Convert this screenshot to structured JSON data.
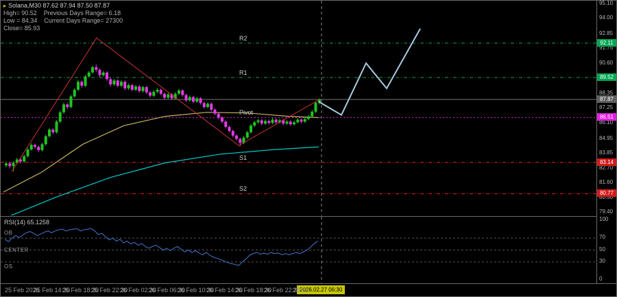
{
  "legend": {
    "marker": "▸",
    "title": "Solana,M30 87.62 87.94 87.50 87.87",
    "info_lines": [
      "High= 90.52    Previous Days Range= 6.18",
      "Low = 84.34    Current Days Range= 27300",
      "Close= 85.93"
    ]
  },
  "chart_data": {
    "type": "candlestick",
    "symbol": "Solana",
    "timeframe": "M30",
    "current_bar": {
      "open": 87.62,
      "high": 87.94,
      "low": 87.5,
      "close": 87.87
    },
    "ylim": [
      79.4,
      95.1
    ],
    "bull_color": "#1fc41f",
    "bear_color": "#e33ae3",
    "candles": [
      [
        82.9,
        83.2,
        82.75,
        83.05
      ],
      [
        83.05,
        83.15,
        82.7,
        82.85
      ],
      [
        82.85,
        83.22,
        82.45,
        83.1
      ],
      [
        83.1,
        83.48,
        83.0,
        83.35
      ],
      [
        83.35,
        83.45,
        83.05,
        83.2
      ],
      [
        83.2,
        83.72,
        83.1,
        83.6
      ],
      [
        83.6,
        84.22,
        83.5,
        84.1
      ],
      [
        84.1,
        84.58,
        84.0,
        84.45
      ],
      [
        84.45,
        84.55,
        84.15,
        84.3
      ],
      [
        84.3,
        84.4,
        83.92,
        84.05
      ],
      [
        84.05,
        84.62,
        83.95,
        84.5
      ],
      [
        84.5,
        85.22,
        84.4,
        85.1
      ],
      [
        85.1,
        85.72,
        85.0,
        85.6
      ],
      [
        85.6,
        85.7,
        85.25,
        85.4
      ],
      [
        85.4,
        86.32,
        85.3,
        86.2
      ],
      [
        86.2,
        87.02,
        86.1,
        86.9
      ],
      [
        86.9,
        87.62,
        86.8,
        87.5
      ],
      [
        87.5,
        87.6,
        87.15,
        87.3
      ],
      [
        87.3,
        88.22,
        87.2,
        88.1
      ],
      [
        88.1,
        88.72,
        88.0,
        88.6
      ],
      [
        88.6,
        89.32,
        88.5,
        89.2
      ],
      [
        89.2,
        89.3,
        88.75,
        88.9
      ],
      [
        88.9,
        89.72,
        88.8,
        89.6
      ],
      [
        89.6,
        90.02,
        89.5,
        89.9
      ],
      [
        89.9,
        90.42,
        89.8,
        90.3
      ],
      [
        90.3,
        90.52,
        89.95,
        90.1
      ],
      [
        90.1,
        90.2,
        89.55,
        89.7
      ],
      [
        89.7,
        90.02,
        89.6,
        89.9
      ],
      [
        89.9,
        90.0,
        89.28,
        89.4
      ],
      [
        89.4,
        89.5,
        88.85,
        89.0
      ],
      [
        89.0,
        89.42,
        88.9,
        89.3
      ],
      [
        89.3,
        89.4,
        88.78,
        88.9
      ],
      [
        88.9,
        89.32,
        88.8,
        89.2
      ],
      [
        89.2,
        89.3,
        88.58,
        88.7
      ],
      [
        88.7,
        89.07,
        88.6,
        88.95
      ],
      [
        88.95,
        89.05,
        88.48,
        88.6
      ],
      [
        88.6,
        88.97,
        88.5,
        88.85
      ],
      [
        88.85,
        88.95,
        88.38,
        88.5
      ],
      [
        88.5,
        88.92,
        88.4,
        88.8
      ],
      [
        88.8,
        88.9,
        88.28,
        88.4
      ],
      [
        88.4,
        88.5,
        88.03,
        88.15
      ],
      [
        88.15,
        88.57,
        88.05,
        88.45
      ],
      [
        88.45,
        88.72,
        88.35,
        88.6
      ],
      [
        88.6,
        88.7,
        88.18,
        88.3
      ],
      [
        88.3,
        88.4,
        87.88,
        88.0
      ],
      [
        88.0,
        88.37,
        87.9,
        88.25
      ],
      [
        88.25,
        88.35,
        87.83,
        87.95
      ],
      [
        87.95,
        88.42,
        87.85,
        88.3
      ],
      [
        88.3,
        88.67,
        88.2,
        88.55
      ],
      [
        88.55,
        88.65,
        88.08,
        88.2
      ],
      [
        88.2,
        88.3,
        87.68,
        87.8
      ],
      [
        87.8,
        88.17,
        87.7,
        88.05
      ],
      [
        88.05,
        88.15,
        87.58,
        87.7
      ],
      [
        87.7,
        88.07,
        87.6,
        87.95
      ],
      [
        87.95,
        88.05,
        87.48,
        87.6
      ],
      [
        87.6,
        87.7,
        87.18,
        87.3
      ],
      [
        87.3,
        87.67,
        87.2,
        87.55
      ],
      [
        87.55,
        87.65,
        86.98,
        87.1
      ],
      [
        87.1,
        87.2,
        86.68,
        86.8
      ],
      [
        86.8,
        86.9,
        86.38,
        86.5
      ],
      [
        86.5,
        86.6,
        86.08,
        86.2
      ],
      [
        86.2,
        86.3,
        85.68,
        85.8
      ],
      [
        85.8,
        85.9,
        85.38,
        85.5
      ],
      [
        85.5,
        85.6,
        85.03,
        85.15
      ],
      [
        85.15,
        85.25,
        84.78,
        84.9
      ],
      [
        84.9,
        85.0,
        84.34,
        84.6
      ],
      [
        84.6,
        85.12,
        84.5,
        85.0
      ],
      [
        85.0,
        85.52,
        84.9,
        85.4
      ],
      [
        85.4,
        86.02,
        85.3,
        85.9
      ],
      [
        85.9,
        86.27,
        85.8,
        86.15
      ],
      [
        86.15,
        86.42,
        86.05,
        86.3
      ],
      [
        86.3,
        86.4,
        85.93,
        86.05
      ],
      [
        86.05,
        86.37,
        85.95,
        86.25
      ],
      [
        86.25,
        86.35,
        85.98,
        86.1
      ],
      [
        86.1,
        86.47,
        86.0,
        86.35
      ],
      [
        86.35,
        86.45,
        86.03,
        86.15
      ],
      [
        86.15,
        86.42,
        86.05,
        86.3
      ],
      [
        86.3,
        86.4,
        85.93,
        86.05
      ],
      [
        86.05,
        86.32,
        85.95,
        86.2
      ],
      [
        86.2,
        86.3,
        85.88,
        86.0
      ],
      [
        86.0,
        86.27,
        85.9,
        86.15
      ],
      [
        86.15,
        86.47,
        86.05,
        86.35
      ],
      [
        86.35,
        86.45,
        86.08,
        86.2
      ],
      [
        86.2,
        86.52,
        86.1,
        86.4
      ],
      [
        86.4,
        86.72,
        86.3,
        86.6
      ],
      [
        86.6,
        87.07,
        86.5,
        86.95
      ],
      [
        86.95,
        87.74,
        86.85,
        87.62
      ],
      [
        87.62,
        87.94,
        87.5,
        87.87
      ]
    ],
    "levels": [
      {
        "label": "R2",
        "value": 92.11,
        "color": "#00a651",
        "dash": "5,3,1,3"
      },
      {
        "label": "R1",
        "value": 89.52,
        "color": "#00a651",
        "dash": "5,3,1,3"
      },
      {
        "label": "Pivot",
        "value": 86.51,
        "color": "#e020e0",
        "dash": "2,3"
      },
      {
        "label": "S1",
        "value": 83.14,
        "color": "#e02020",
        "dash": "5,3,1,3"
      },
      {
        "label": "S2",
        "value": 80.77,
        "color": "#e02020",
        "dash": "5,3,1,3"
      }
    ],
    "current_price": {
      "value": 87.87,
      "color": "#787878"
    },
    "ma_fast": {
      "color": "#c8b560",
      "points": [
        [
          4,
          80.9
        ],
        [
          60,
          82.4
        ],
        [
          120,
          84.5
        ],
        [
          180,
          85.9
        ],
        [
          240,
          86.6
        ],
        [
          300,
          86.9
        ],
        [
          360,
          86.85
        ],
        [
          420,
          86.6
        ],
        [
          464,
          86.5
        ]
      ]
    },
    "ma_slow": {
      "color": "#00cccc",
      "points": [
        [
          4,
          78.9
        ],
        [
          80,
          80.5
        ],
        [
          160,
          82.0
        ],
        [
          240,
          83.1
        ],
        [
          320,
          83.75
        ],
        [
          400,
          84.1
        ],
        [
          464,
          84.3
        ]
      ]
    },
    "zigzag": {
      "color": "#cc3333",
      "points_idx": [
        [
          2,
          82.45
        ],
        [
          25.5,
          92.5
        ],
        [
          65,
          84.4
        ],
        [
          87.3,
          87.85
        ]
      ]
    },
    "forecast": {
      "color": "#a9cbe0",
      "points": [
        [
          464,
          87.7
        ],
        [
          497,
          86.7
        ],
        [
          533,
          90.6
        ],
        [
          563,
          88.7
        ],
        [
          612,
          93.2
        ]
      ]
    },
    "separator_x": 468,
    "price_ticks": [
      95.1,
      94.0,
      92.85,
      91.75,
      90.6,
      89.45,
      88.35,
      87.25,
      86.1,
      84.95,
      83.85,
      82.7,
      81.6,
      80.5,
      79.4
    ],
    "badges": [
      {
        "text": "92.11",
        "price": 92.11,
        "bg": "#00a651"
      },
      {
        "text": "89.52",
        "price": 89.52,
        "bg": "#00a651"
      },
      {
        "text": "87.87",
        "price": 87.87,
        "bg": "#5f5f5f"
      },
      {
        "text": "86.51",
        "price": 86.51,
        "bg": "#e020e0"
      },
      {
        "text": "83.14",
        "price": 83.14,
        "bg": "#d11919"
      },
      {
        "text": "80.77",
        "price": 80.77,
        "bg": "#d11919"
      }
    ],
    "rsi": {
      "label": "RSI(14) 65.1258",
      "color": "#3c64b1",
      "levels": [
        70,
        50,
        30
      ],
      "axis_labels": [
        100,
        70,
        50,
        30,
        0
      ],
      "left_labels": [
        {
          "text": "OB",
          "v": 78
        },
        {
          "text": "CENTER",
          "v": 50
        },
        {
          "text": "OS",
          "v": 22
        }
      ],
      "values": [
        68,
        64,
        70,
        74,
        71,
        75,
        79,
        81,
        78,
        74,
        77,
        80,
        82,
        79,
        82,
        84,
        85,
        82,
        84,
        85,
        86,
        82,
        84,
        85,
        86,
        82,
        76,
        78,
        72,
        67,
        70,
        65,
        68,
        62,
        65,
        60,
        63,
        58,
        61,
        56,
        53,
        56,
        58,
        54,
        50,
        53,
        49,
        53,
        56,
        51,
        47,
        50,
        46,
        49,
        45,
        42,
        46,
        41,
        38,
        36,
        34,
        31,
        29,
        27,
        26,
        24,
        30,
        35,
        41,
        44,
        46,
        43,
        45,
        43,
        46,
        44,
        45,
        42,
        44,
        42,
        44,
        46,
        44,
        47,
        50,
        55,
        61,
        65.13
      ]
    }
  },
  "time_axis": {
    "labels": [
      "25 Feb 2026",
      "25 Feb 14:30",
      "25 Feb 18:30",
      "25 Feb 22:30",
      "26 Feb 02:30",
      "26 Feb 06:30",
      "26 Feb 10:30",
      "26 Feb 14:30",
      "26 Feb 18:30",
      "26 Feb 22:30",
      "27 Fe"
    ],
    "highlight": "2026.02.27 06:30"
  }
}
